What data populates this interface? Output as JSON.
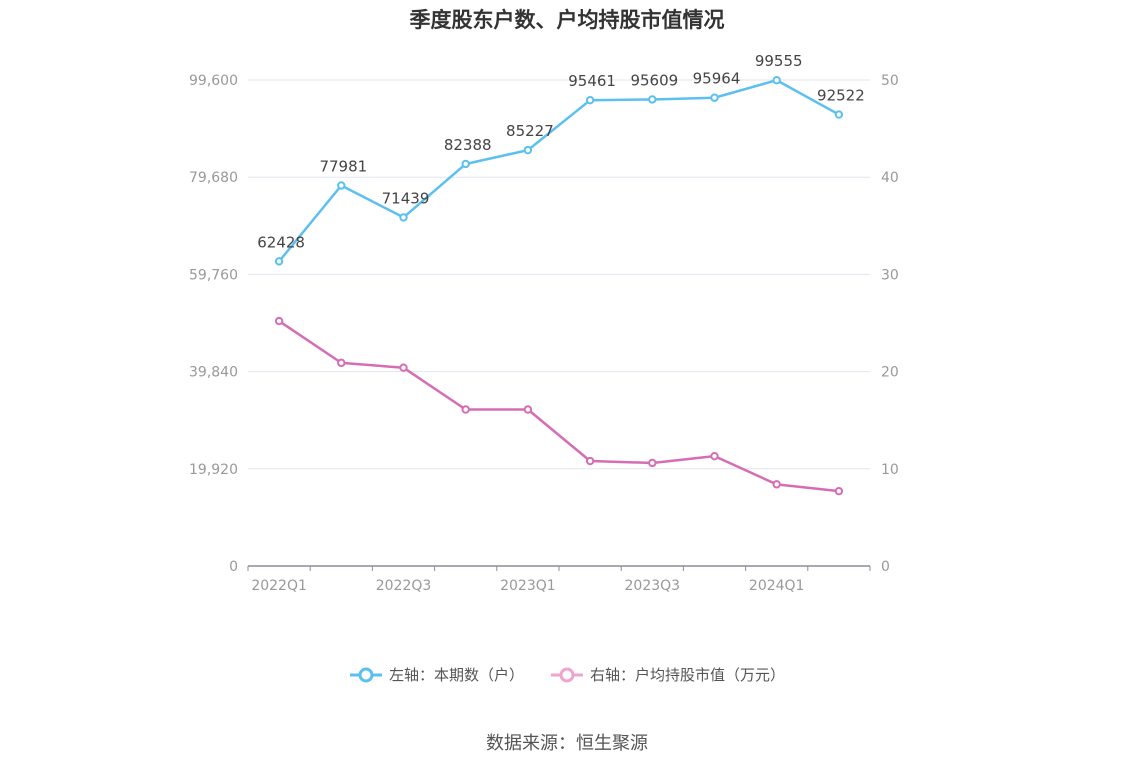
{
  "chart_data": {
    "type": "line",
    "title": "季度股东户数、户均持股市值情况",
    "categories": [
      "2022Q1",
      "2022Q2",
      "2022Q3",
      "2022Q4",
      "2023Q1",
      "2023Q2",
      "2023Q3",
      "2023Q4",
      "2024Q1",
      "2024Q2"
    ],
    "x_tick_labels": [
      "2022Q1",
      "2022Q3",
      "2023Q1",
      "2023Q3",
      "2024Q1"
    ],
    "left_axis": {
      "ylim": [
        0,
        99600
      ],
      "ticks": [
        "0",
        "19,920",
        "39,840",
        "59,760",
        "79,680",
        "99,600"
      ]
    },
    "right_axis": {
      "ylim": [
        0,
        50
      ],
      "ticks": [
        "0",
        "10",
        "20",
        "30",
        "40",
        "50"
      ]
    },
    "series": [
      {
        "name": "左轴：本期数（户）",
        "axis": "left",
        "color": "#5bc0f0",
        "values": [
          62428,
          77981,
          71439,
          82388,
          85227,
          95461,
          95609,
          95964,
          99555,
          92522
        ],
        "labels": [
          "62428",
          "77981",
          "71439",
          "82388",
          "85227",
          "95461",
          "95609",
          "95964",
          "99555",
          "92522"
        ]
      },
      {
        "name": "右轴：户均持股市值（万元）",
        "axis": "right",
        "color": "#d56db4",
        "values": [
          25.2,
          20.9,
          20.4,
          16.1,
          16.1,
          10.8,
          10.6,
          11.3,
          8.4,
          7.7
        ]
      }
    ],
    "grid": true,
    "legend_position": "bottom"
  },
  "legend": {
    "item1": "左轴：本期数（户）",
    "item2": "右轴：户均持股市值（万元）",
    "item1_color": "#5bc0f0",
    "item2_color": "#f0a3cf"
  },
  "source": "数据来源：恒生聚源"
}
